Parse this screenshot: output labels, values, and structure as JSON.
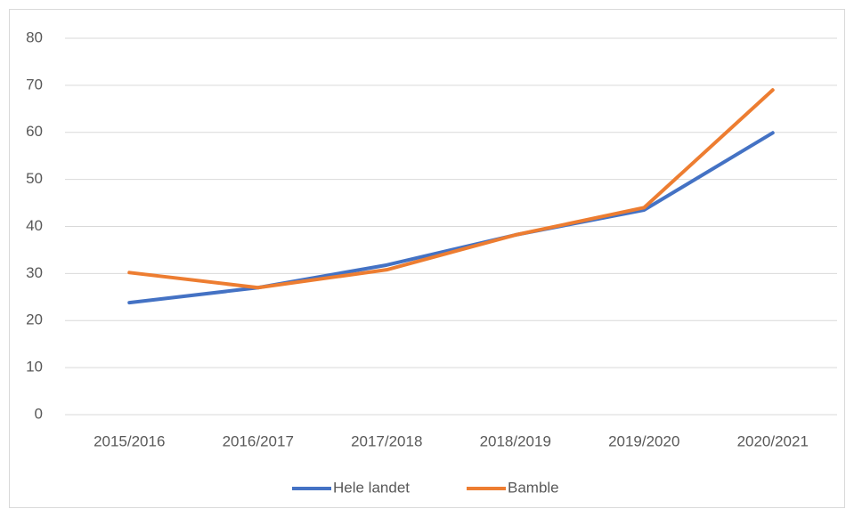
{
  "chart_data": {
    "type": "line",
    "categories": [
      "2015/2016",
      "2016/2017",
      "2017/2018",
      "2018/2019",
      "2019/2020",
      "2020/2021"
    ],
    "series": [
      {
        "name": "Hele landet",
        "color": "#4472c4",
        "values": [
          23.8,
          27.0,
          31.8,
          38.2,
          43.5,
          59.9
        ]
      },
      {
        "name": "Bamble",
        "color": "#ed7d31",
        "values": [
          30.2,
          27.0,
          30.8,
          38.2,
          44.0,
          69.0
        ]
      }
    ],
    "ylim": [
      0,
      80
    ],
    "yticks": [
      0,
      10,
      20,
      30,
      40,
      50,
      60,
      70,
      80
    ],
    "grid": true,
    "legend": "bottom"
  }
}
